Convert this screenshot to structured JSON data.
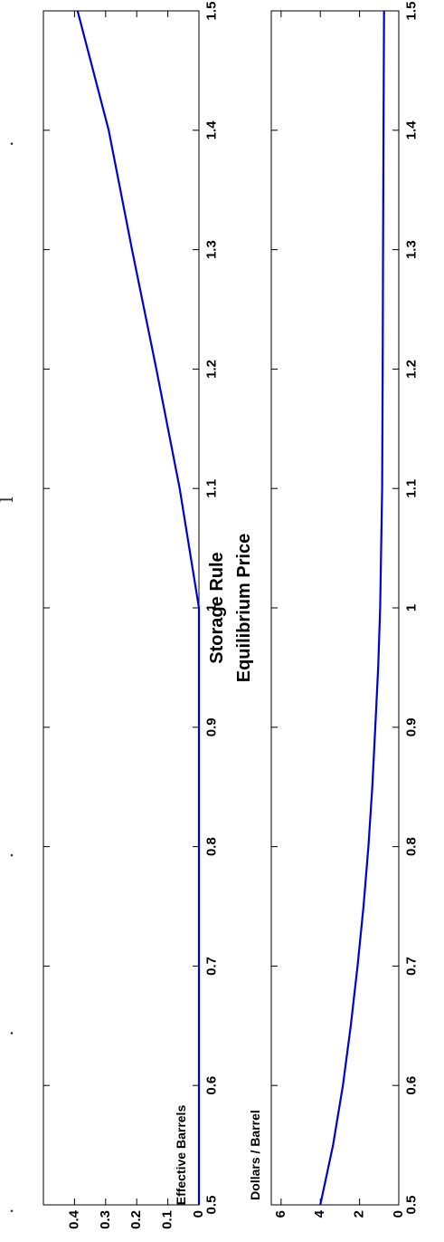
{
  "caption_fragment": {
    "text": "... l  ...  g  ...  y"
  },
  "chart_data": [
    {
      "type": "line",
      "title": "Storage Rule",
      "xlabel": "",
      "ylabel": "Effective Barrels",
      "xlim": [
        0.5,
        1.5
      ],
      "ylim": [
        0,
        0.5
      ],
      "xticks": [
        "0.5",
        "0.6",
        "0.7",
        "0.8",
        "0.9",
        "1",
        "1.1",
        "1.2",
        "1.3",
        "1.4",
        "1.5"
      ],
      "yticks": [
        "0",
        "0.1",
        "0.2",
        "0.3",
        "0.4"
      ],
      "series": [
        {
          "color": "#0000d0",
          "x": [
            0.5,
            0.6,
            0.7,
            0.8,
            0.9,
            1.0,
            1.1,
            1.2,
            1.3,
            1.4,
            1.5
          ],
          "y": [
            0,
            0,
            0,
            0,
            0,
            0,
            0.062,
            0.137,
            0.215,
            0.29,
            0.39
          ]
        }
      ]
    },
    {
      "type": "line",
      "title": "Equilibrium Price",
      "xlabel": "",
      "ylabel": "Dollars / Barrel",
      "xlim": [
        0.5,
        1.5
      ],
      "ylim": [
        0,
        6.5
      ],
      "xticks": [
        "0.5",
        "0.6",
        "0.7",
        "0.8",
        "0.9",
        "1",
        "1.1",
        "1.2",
        "1.3",
        "1.4",
        "1.5"
      ],
      "yticks": [
        "0",
        "2",
        "4",
        "6"
      ],
      "series": [
        {
          "color": "#0000d0",
          "x": [
            0.5,
            0.55,
            0.6,
            0.65,
            0.7,
            0.75,
            0.8,
            0.85,
            0.9,
            0.95,
            1.0,
            1.1,
            1.2,
            1.3,
            1.4,
            1.5
          ],
          "y": [
            4.0,
            3.35,
            2.85,
            2.45,
            2.1,
            1.8,
            1.55,
            1.35,
            1.2,
            1.05,
            0.95,
            0.85,
            0.82,
            0.8,
            0.78,
            0.75
          ]
        }
      ]
    }
  ]
}
